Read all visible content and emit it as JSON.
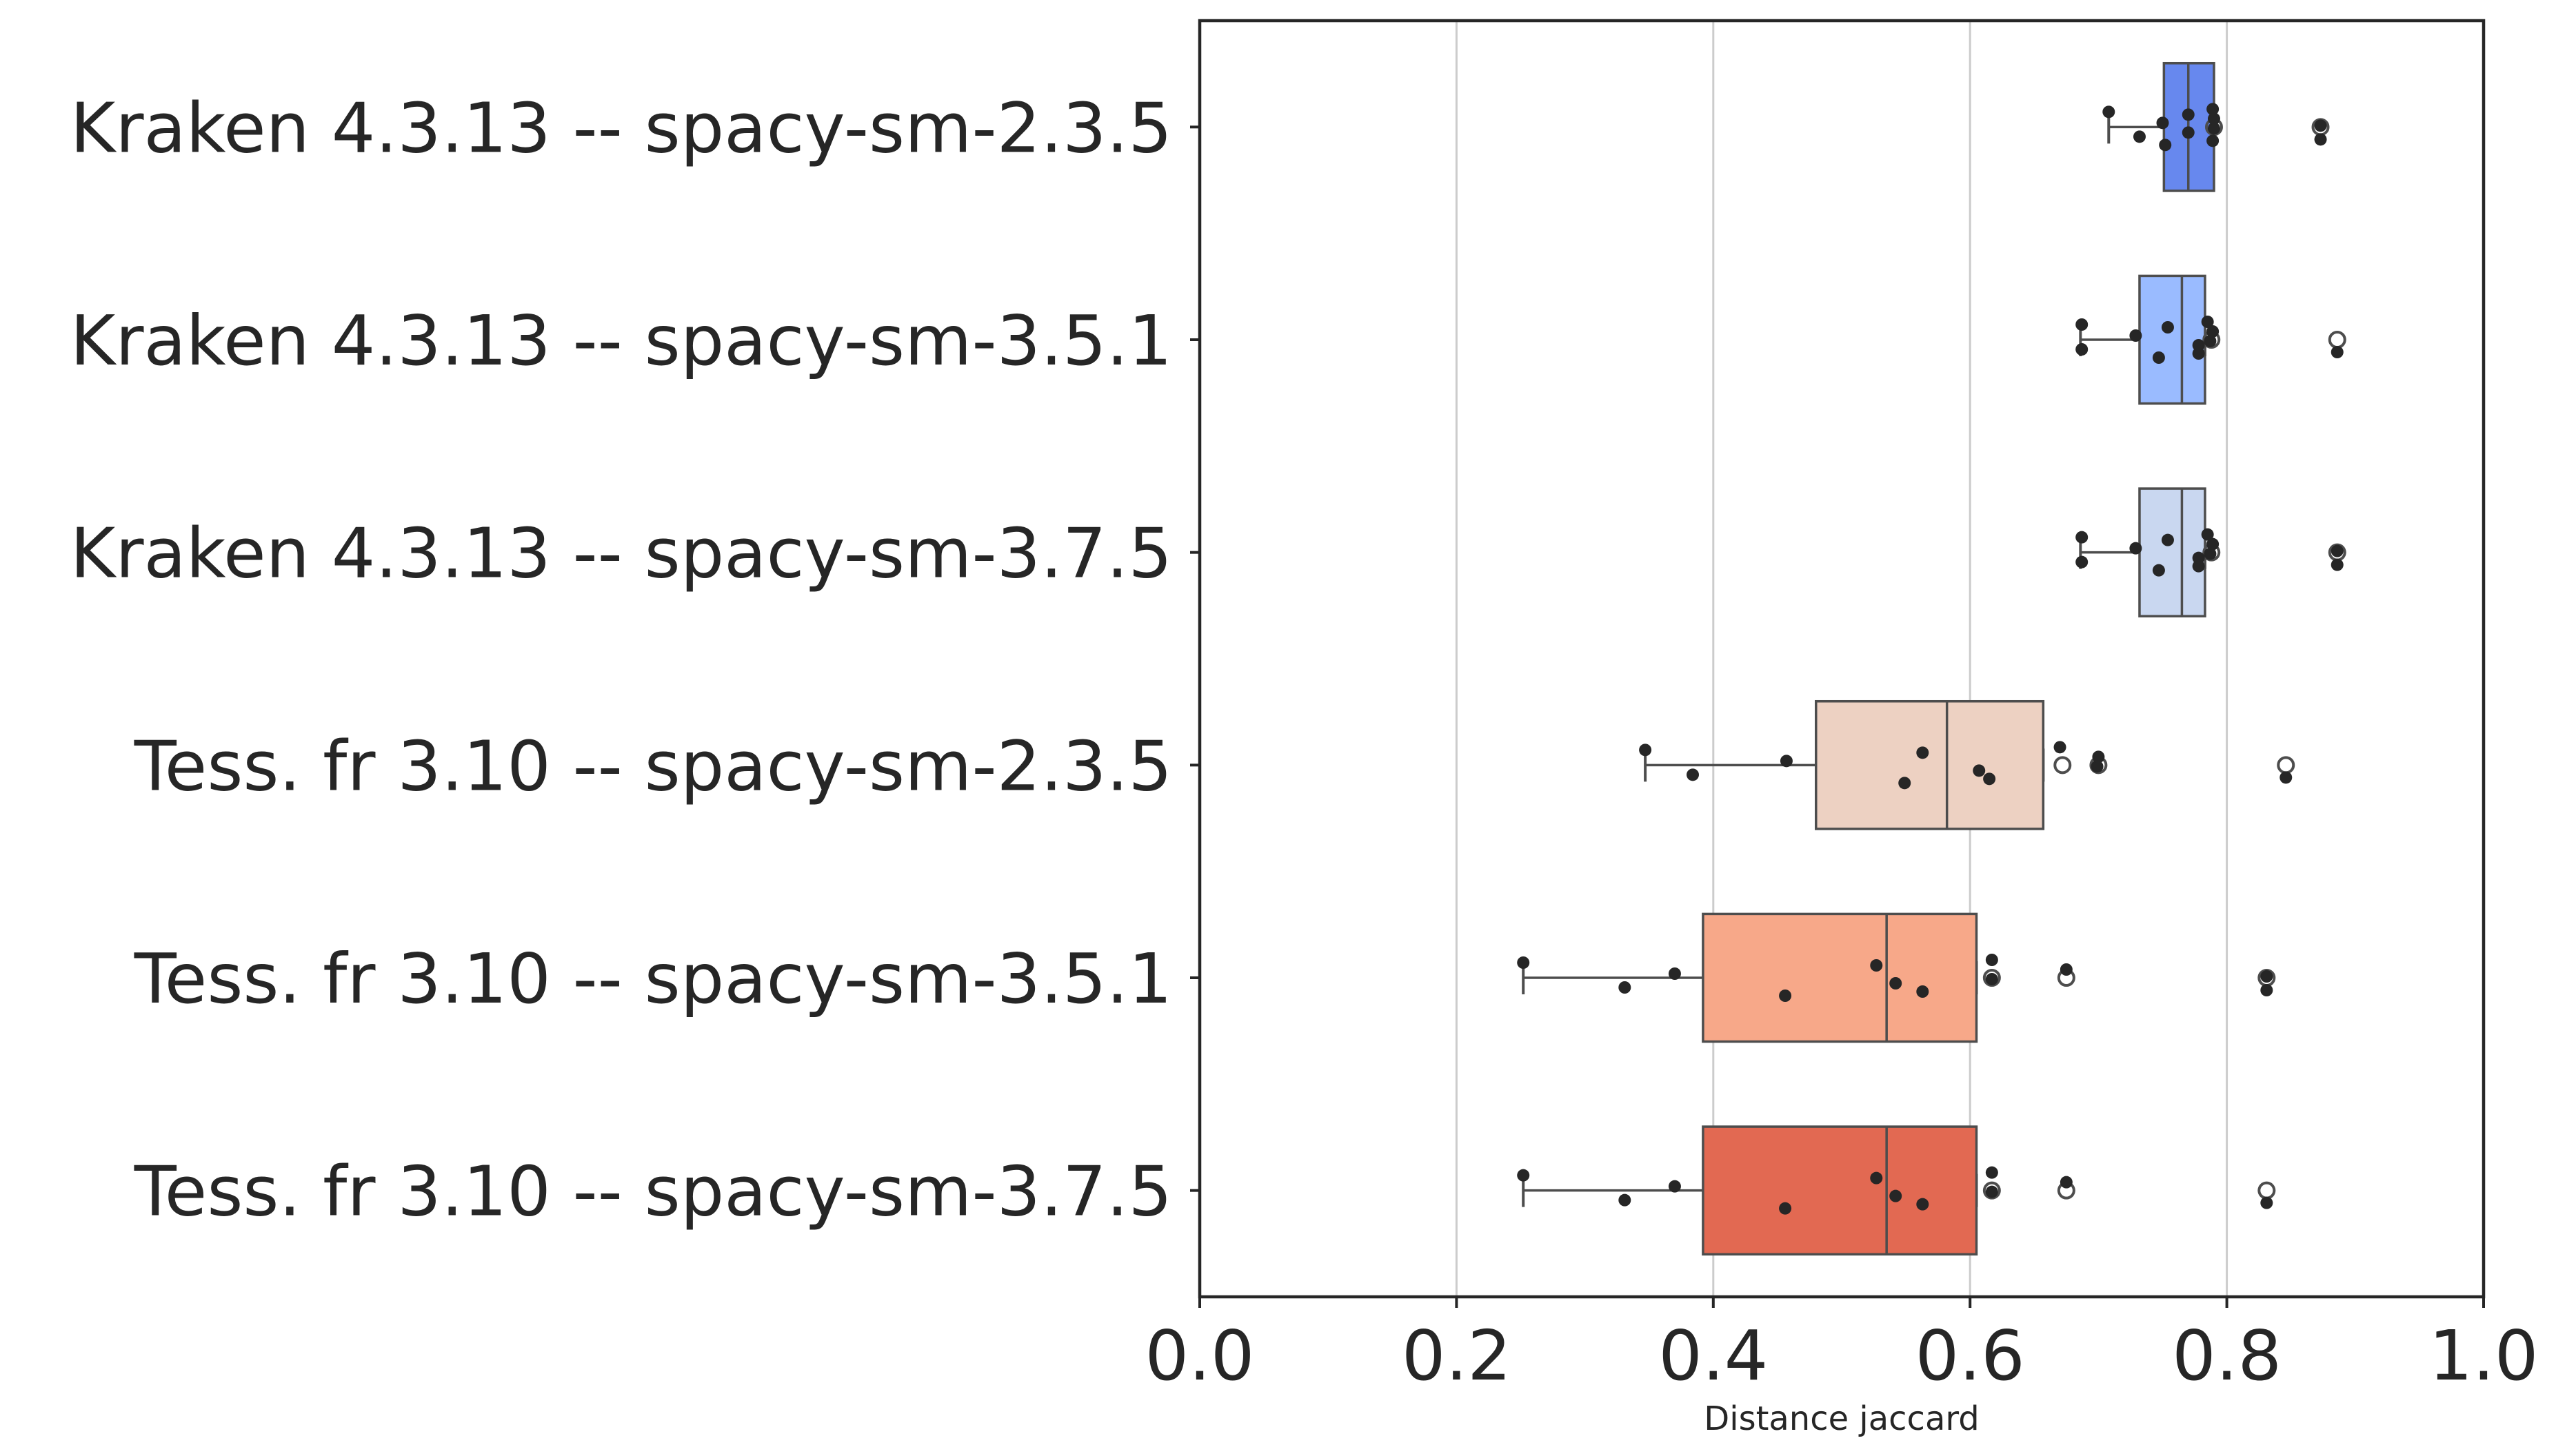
{
  "chart_data": {
    "type": "box",
    "orientation": "horizontal",
    "title": "",
    "xlabel": "Distance jaccard",
    "ylabel": "",
    "xlim": [
      0.0,
      1.0
    ],
    "x_ticks": [
      "0.0",
      "0.2",
      "0.4",
      "0.6",
      "0.8",
      "1.0"
    ],
    "grid": "vertical",
    "categories": [
      "Kraken 4.3.13 -- spacy-sm-2.3.5",
      "Kraken 4.3.13 -- spacy-sm-3.5.1",
      "Kraken 4.3.13 -- spacy-sm-3.7.5",
      "Tess. fr 3.10 -- spacy-sm-2.3.5",
      "Tess. fr 3.10 -- spacy-sm-3.5.1",
      "Tess. fr 3.10 -- spacy-sm-3.7.5"
    ],
    "colors": [
      "#6788ee",
      "#9abbff",
      "#c9d7f0",
      "#edd1c2",
      "#f7a889",
      "#e26952"
    ],
    "boxes": [
      {
        "whisker_low": 0.708,
        "q1": 0.751,
        "median": 0.77,
        "q3": 0.79,
        "whisker_high": 0.79,
        "outliers": [
          0.79,
          0.873
        ]
      },
      {
        "whisker_low": 0.686,
        "q1": 0.732,
        "median": 0.765,
        "q3": 0.783,
        "whisker_high": 0.783,
        "outliers": [
          0.788,
          0.886
        ]
      },
      {
        "whisker_low": 0.686,
        "q1": 0.732,
        "median": 0.765,
        "q3": 0.783,
        "whisker_high": 0.783,
        "outliers": [
          0.788,
          0.886
        ]
      },
      {
        "whisker_low": 0.347,
        "q1": 0.48,
        "median": 0.582,
        "q3": 0.657,
        "whisker_high": 0.657,
        "outliers": [
          0.672,
          0.7,
          0.846
        ]
      },
      {
        "whisker_low": 0.252,
        "q1": 0.392,
        "median": 0.535,
        "q3": 0.605,
        "whisker_high": 0.605,
        "outliers": [
          0.617,
          0.675,
          0.831
        ]
      },
      {
        "whisker_low": 0.252,
        "q1": 0.392,
        "median": 0.535,
        "q3": 0.605,
        "whisker_high": 0.605,
        "outliers": [
          0.617,
          0.675,
          0.831
        ]
      }
    ],
    "points": [
      [
        0.708,
        0.732,
        0.75,
        0.752,
        0.77,
        0.77,
        0.789,
        0.789,
        0.79,
        0.79,
        0.873,
        0.873
      ],
      [
        0.687,
        0.687,
        0.729,
        0.747,
        0.754,
        0.778,
        0.778,
        0.785,
        0.787,
        0.789,
        0.886
      ],
      [
        0.687,
        0.687,
        0.729,
        0.747,
        0.754,
        0.778,
        0.778,
        0.785,
        0.787,
        0.789,
        0.886,
        0.886
      ],
      [
        0.347,
        0.384,
        0.457,
        0.549,
        0.563,
        0.607,
        0.615,
        0.67,
        0.699,
        0.7,
        0.846
      ],
      [
        0.252,
        0.331,
        0.37,
        0.456,
        0.527,
        0.542,
        0.563,
        0.617,
        0.617,
        0.675,
        0.831,
        0.831
      ],
      [
        0.252,
        0.331,
        0.37,
        0.456,
        0.527,
        0.542,
        0.563,
        0.617,
        0.617,
        0.675,
        0.831
      ]
    ]
  }
}
